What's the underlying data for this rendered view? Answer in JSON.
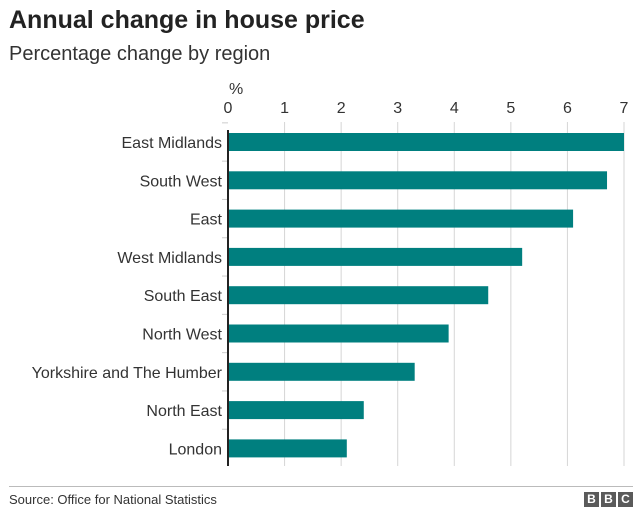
{
  "chart_data": {
    "type": "bar",
    "orientation": "horizontal",
    "title": "Annual change in house price",
    "subtitle": "Percentage change by region",
    "xlabel": "%",
    "xlim": [
      0,
      7
    ],
    "xticks": [
      "0",
      "1",
      "2",
      "3",
      "4",
      "5",
      "6",
      "7"
    ],
    "grid": true,
    "categories": [
      "East Midlands",
      "South West",
      "East",
      "West Midlands",
      "South East",
      "North West",
      "Yorkshire and The Humber",
      "North East",
      "London"
    ],
    "values": [
      7.0,
      6.7,
      6.1,
      5.2,
      4.6,
      3.9,
      3.3,
      2.4,
      2.1
    ],
    "bar_color": "#007f7f"
  },
  "footer": {
    "source": "Source: Office for National Statistics",
    "logo": [
      "B",
      "B",
      "C"
    ]
  }
}
